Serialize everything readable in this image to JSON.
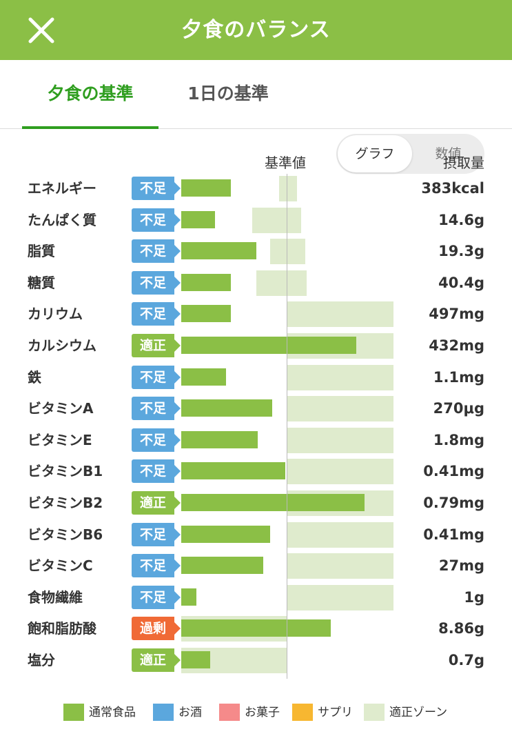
{
  "header": {
    "title": "夕食のバランス",
    "close_icon": "close-icon"
  },
  "tabs": [
    {
      "label": "夕食の基準",
      "active": true
    },
    {
      "label": "1日の基準",
      "active": false
    }
  ],
  "view_toggle": {
    "options": [
      "グラフ",
      "数値"
    ],
    "selected": "グラフ"
  },
  "columns": {
    "base": "基準値",
    "intake": "摂取量"
  },
  "colors": {
    "header": "#8bbf46",
    "active_tab": "#2f9e1f",
    "bar": "#8bbf46",
    "zone": "#dfebcd",
    "status_short": "#5ba7dd",
    "status_ok": "#8bbf46",
    "status_over": "#f06a36"
  },
  "chart_data": {
    "type": "bar",
    "unit": "% of 基準値",
    "rows": [
      {
        "name": "エネルギー",
        "status": "不足",
        "value": "383kcal",
        "ratio": 0.47,
        "zone": [
          0.92,
          1.09
        ]
      },
      {
        "name": "たんぱく質",
        "status": "不足",
        "value": "14.6g",
        "ratio": 0.32,
        "zone": [
          0.67,
          1.13
        ]
      },
      {
        "name": "脂質",
        "status": "不足",
        "value": "19.3g",
        "ratio": 0.71,
        "zone": [
          0.84,
          1.17
        ]
      },
      {
        "name": "糖質",
        "status": "不足",
        "value": "40.4g",
        "ratio": 0.47,
        "zone": [
          0.71,
          1.18
        ]
      },
      {
        "name": "カリウム",
        "status": "不足",
        "value": "497mg",
        "ratio": 0.47,
        "zone": [
          1.0,
          2.0
        ]
      },
      {
        "name": "カルシウム",
        "status": "適正",
        "value": "432mg",
        "ratio": 1.65,
        "zone": [
          1.0,
          2.0
        ]
      },
      {
        "name": "鉄",
        "status": "不足",
        "value": "1.1mg",
        "ratio": 0.42,
        "zone": [
          1.0,
          2.0
        ]
      },
      {
        "name": "ビタミンA",
        "status": "不足",
        "value": "270μg",
        "ratio": 0.86,
        "zone": [
          1.0,
          2.0
        ]
      },
      {
        "name": "ビタミンE",
        "status": "不足",
        "value": "1.8mg",
        "ratio": 0.72,
        "zone": [
          1.0,
          2.0
        ]
      },
      {
        "name": "ビタミンB1",
        "status": "不足",
        "value": "0.41mg",
        "ratio": 0.98,
        "zone": [
          1.0,
          2.0
        ]
      },
      {
        "name": "ビタミンB2",
        "status": "適正",
        "value": "0.79mg",
        "ratio": 1.73,
        "zone": [
          1.0,
          2.0
        ]
      },
      {
        "name": "ビタミンB6",
        "status": "不足",
        "value": "0.41mg",
        "ratio": 0.84,
        "zone": [
          1.0,
          2.0
        ]
      },
      {
        "name": "ビタミンC",
        "status": "不足",
        "value": "27mg",
        "ratio": 0.77,
        "zone": [
          1.0,
          2.0
        ]
      },
      {
        "name": "食物繊維",
        "status": "不足",
        "value": "1g",
        "ratio": 0.14,
        "zone": [
          1.0,
          2.0
        ]
      },
      {
        "name": "飽和脂肪酸",
        "status": "過剰",
        "value": "8.86g",
        "ratio": 1.41,
        "zone": [
          0.0,
          1.0
        ]
      },
      {
        "name": "塩分",
        "status": "適正",
        "value": "0.7g",
        "ratio": 0.27,
        "zone": [
          0.0,
          1.0
        ]
      }
    ],
    "legend": [
      {
        "label": "通常食品",
        "color": "#8bbf46"
      },
      {
        "label": "お酒",
        "color": "#5ba7dd"
      },
      {
        "label": "お菓子",
        "color": "#f58a8a"
      },
      {
        "label": "サプリ",
        "color": "#f7b731"
      },
      {
        "label": "適正ゾーン",
        "color": "#dfebcd"
      }
    ]
  }
}
